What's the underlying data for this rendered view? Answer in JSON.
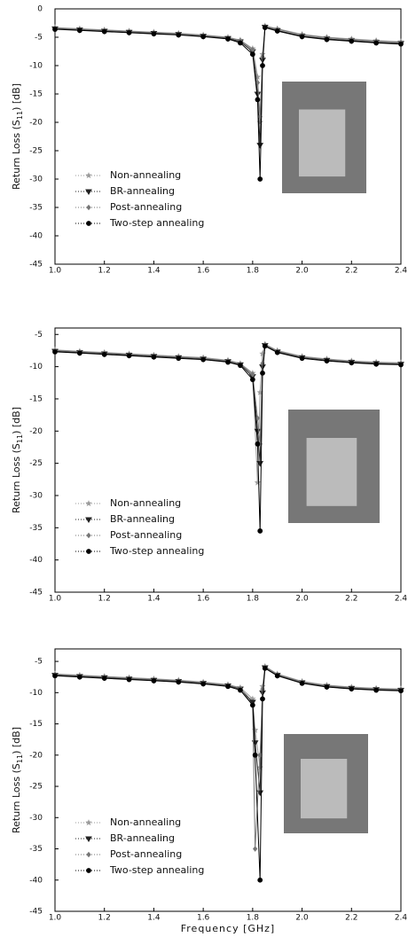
{
  "chart_data": [
    {
      "type": "line",
      "y_label": [
        "Return Loss (S",
        "11",
        ") [dB]"
      ],
      "x": [
        1.0,
        1.1,
        1.2,
        1.3,
        1.4,
        1.5,
        1.6,
        1.7,
        1.75,
        1.8,
        1.82,
        1.83,
        1.84,
        1.85,
        1.9,
        2.0,
        2.1,
        2.2,
        2.3,
        2.4
      ],
      "xlim": [
        1.0,
        2.4
      ],
      "xticks": [
        {
          "value": 1,
          "label": "1.0"
        },
        1.2,
        1.4,
        1.6,
        1.8,
        {
          "value": 2,
          "label": "2.0"
        },
        2.2,
        2.4
      ],
      "ylim": [
        -45,
        0
      ],
      "yticks": [
        0,
        -5,
        -10,
        -15,
        -20,
        -25,
        -30,
        -35,
        -40,
        -45
      ],
      "legend": "lower left",
      "series": [
        {
          "name": "Non-annealing",
          "color": "#9a9a9a",
          "values": [
            -3.3,
            -3.5,
            -3.7,
            -3.9,
            -4.1,
            -4.3,
            -4.6,
            -5.0,
            -5.5,
            -7.0,
            -12,
            -20,
            -8,
            -3.0,
            -3.5,
            -4.5,
            -5.0,
            -5.3,
            -5.6,
            -5.8
          ]
        },
        {
          "name": "BR-annealing",
          "color": "#222222",
          "values": [
            -3.5,
            -3.7,
            -3.9,
            -4.1,
            -4.3,
            -4.5,
            -4.8,
            -5.2,
            -5.8,
            -7.5,
            -15,
            -24,
            -9,
            -3.2,
            -3.8,
            -4.8,
            -5.3,
            -5.6,
            -5.9,
            -6.1
          ]
        },
        {
          "name": "Post-annealing",
          "color": "#777777",
          "values": [
            -3.4,
            -3.6,
            -3.8,
            -4.0,
            -4.2,
            -4.4,
            -4.7,
            -5.1,
            -5.6,
            -7.2,
            -13,
            -19,
            -8.5,
            -3.1,
            -3.6,
            -4.6,
            -5.1,
            -5.4,
            -5.7,
            -5.9
          ]
        },
        {
          "name": "Two-step annealing",
          "color": "#000000",
          "values": [
            -3.6,
            -3.8,
            -4.0,
            -4.2,
            -4.4,
            -4.6,
            -4.9,
            -5.3,
            -6.0,
            -8.0,
            -16,
            -30,
            -10,
            -3.3,
            -3.9,
            -4.9,
            -5.4,
            -5.7,
            -6.0,
            -6.2
          ]
        }
      ]
    },
    {
      "type": "line",
      "y_label": [
        "Return Loss (S",
        "11",
        ") [dB]"
      ],
      "x": [
        1.0,
        1.1,
        1.2,
        1.3,
        1.4,
        1.5,
        1.6,
        1.7,
        1.75,
        1.8,
        1.82,
        1.83,
        1.84,
        1.85,
        1.9,
        2.0,
        2.1,
        2.2,
        2.3,
        2.4
      ],
      "xlim": [
        1.0,
        2.4
      ],
      "xticks": [
        {
          "value": 1,
          "label": "1.0"
        },
        1.2,
        1.4,
        1.6,
        1.8,
        {
          "value": 2,
          "label": "2.0"
        },
        2.2,
        2.4
      ],
      "ylim": [
        -45,
        -4
      ],
      "yticks": [
        -5,
        -10,
        -15,
        -20,
        -25,
        -30,
        -35,
        -40,
        -45
      ],
      "legend": "lower left",
      "series": [
        {
          "name": "Non-annealing",
          "color": "#9a9a9a",
          "values": [
            -7.4,
            -7.6,
            -7.8,
            -8.0,
            -8.2,
            -8.4,
            -8.6,
            -9.0,
            -9.5,
            -11,
            -28,
            -14,
            -8,
            -6.5,
            -7.5,
            -8.4,
            -8.8,
            -9.1,
            -9.3,
            -9.4
          ]
        },
        {
          "name": "BR-annealing",
          "color": "#222222",
          "values": [
            -7.6,
            -7.8,
            -8.0,
            -8.2,
            -8.4,
            -8.6,
            -8.8,
            -9.2,
            -9.7,
            -11.5,
            -20,
            -25,
            -10,
            -6.7,
            -7.7,
            -8.6,
            -9.0,
            -9.3,
            -9.5,
            -9.6
          ]
        },
        {
          "name": "Post-annealing",
          "color": "#777777",
          "values": [
            -7.5,
            -7.7,
            -7.9,
            -8.1,
            -8.3,
            -8.5,
            -8.7,
            -9.1,
            -9.6,
            -11.2,
            -18,
            -22,
            -9.5,
            -6.6,
            -7.6,
            -8.5,
            -8.9,
            -9.2,
            -9.4,
            -9.5
          ]
        },
        {
          "name": "Two-step annealing",
          "color": "#000000",
          "values": [
            -7.7,
            -7.9,
            -8.1,
            -8.3,
            -8.5,
            -8.7,
            -8.9,
            -9.3,
            -9.8,
            -12,
            -22,
            -35.5,
            -11,
            -6.8,
            -7.8,
            -8.7,
            -9.1,
            -9.4,
            -9.6,
            -9.7
          ]
        }
      ]
    },
    {
      "type": "line",
      "y_label": [
        "Return Loss (S",
        "11",
        ") [dB]"
      ],
      "x_label": "Frequency [GHz]",
      "x": [
        1.0,
        1.1,
        1.2,
        1.3,
        1.4,
        1.5,
        1.6,
        1.7,
        1.75,
        1.8,
        1.81,
        1.83,
        1.84,
        1.85,
        1.9,
        2.0,
        2.1,
        2.2,
        2.3,
        2.4
      ],
      "xlim": [
        1.0,
        2.4
      ],
      "xticks": [
        {
          "value": 1,
          "label": "1.0"
        },
        1.2,
        1.4,
        1.6,
        1.8,
        {
          "value": 2,
          "label": "2.0"
        },
        2.2,
        2.4
      ],
      "ylim": [
        -45,
        -3
      ],
      "yticks": [
        -5,
        -10,
        -15,
        -20,
        -25,
        -30,
        -35,
        -40,
        -45
      ],
      "legend": "lower left",
      "series": [
        {
          "name": "Non-annealing",
          "color": "#9a9a9a",
          "values": [
            -7.0,
            -7.2,
            -7.4,
            -7.6,
            -7.8,
            -8.0,
            -8.3,
            -8.7,
            -9.2,
            -11,
            -16,
            -22,
            -9,
            -5.8,
            -7.0,
            -8.2,
            -8.8,
            -9.1,
            -9.3,
            -9.4
          ]
        },
        {
          "name": "BR-annealing",
          "color": "#222222",
          "values": [
            -7.2,
            -7.4,
            -7.6,
            -7.8,
            -8.0,
            -8.2,
            -8.5,
            -8.9,
            -9.4,
            -11.5,
            -18,
            -26,
            -10,
            -6.0,
            -7.2,
            -8.4,
            -9.0,
            -9.3,
            -9.5,
            -9.6
          ]
        },
        {
          "name": "Post-annealing",
          "color": "#777777",
          "values": [
            -7.1,
            -7.3,
            -7.5,
            -7.7,
            -7.9,
            -8.1,
            -8.4,
            -8.8,
            -9.3,
            -12,
            -35,
            -20,
            -9.5,
            -5.9,
            -7.1,
            -8.3,
            -8.9,
            -9.2,
            -9.4,
            -9.5
          ]
        },
        {
          "name": "Two-step annealing",
          "color": "#000000",
          "values": [
            -7.3,
            -7.5,
            -7.7,
            -7.9,
            -8.1,
            -8.3,
            -8.6,
            -9.0,
            -9.6,
            -12,
            -20,
            -40,
            -11,
            -6.1,
            -7.3,
            -8.5,
            -9.1,
            -9.4,
            -9.6,
            -9.7
          ]
        }
      ]
    }
  ]
}
